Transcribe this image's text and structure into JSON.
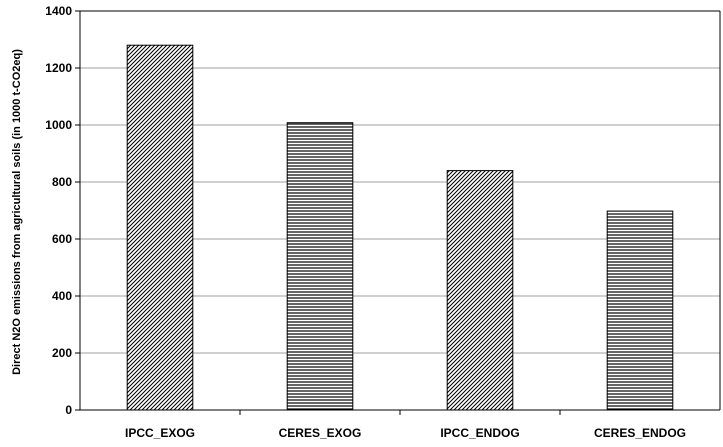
{
  "chart_data": {
    "type": "bar",
    "categories": [
      "IPCC_EXOG",
      "CERES_EXOG",
      "IPCC_ENDOG",
      "CERES_ENDOG"
    ],
    "values": [
      1280,
      1008,
      840,
      698
    ],
    "bar_patterns": [
      "diagonal",
      "horizontal",
      "diagonal",
      "horizontal"
    ],
    "title": "",
    "xlabel": "",
    "ylabel": "Direct N2O emissions from agricultural soils (in 1000 t-CO2eq)",
    "ylim": [
      0,
      1400
    ],
    "yticks": [
      0,
      200,
      400,
      600,
      800,
      1000,
      1200,
      1400
    ],
    "grid": true,
    "colors": {
      "bar_stroke": "#000000",
      "grid": "#a0a0a0",
      "pattern": "#000000"
    }
  }
}
